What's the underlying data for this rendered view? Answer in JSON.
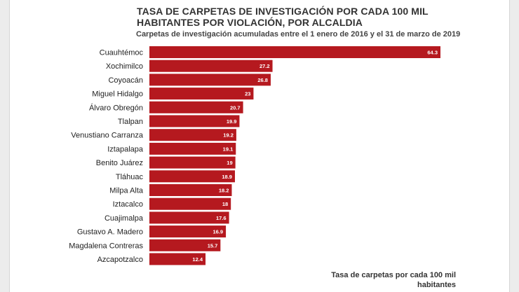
{
  "chart_data": {
    "type": "bar",
    "orientation": "horizontal",
    "title": "TASA DE CARPETAS DE INVESTIGACIÓN POR CADA 100 MIL HABITANTES POR VIOLACIÓN, POR ALCALDIA",
    "subtitle": "Carpetas de investigación acumuladas entre el 1 enero de 2016 y el 31 de marzo de 2019",
    "xlabel": "Tasa de carpetas por cada 100 mil habitantes",
    "ylabel": "",
    "categories": [
      "Cuauhtémoc",
      "Xochimilco",
      "Coyoacán",
      "Miguel Hidalgo",
      "Álvaro Obregón",
      "Tlalpan",
      "Venustiano Carranza",
      "Iztapalapa",
      "Benito Juárez",
      "Tláhuac",
      "Milpa Alta",
      "Iztacalco",
      "Cuajimalpa",
      "Gustavo A. Madero",
      "Magdalena Contreras",
      "Azcapotzalco"
    ],
    "values": [
      64.3,
      27.2,
      26.8,
      23,
      20.7,
      19.9,
      19.2,
      19.1,
      19,
      18.9,
      18.2,
      18,
      17.6,
      16.9,
      15.7,
      12.4
    ],
    "value_labels": [
      "64.3",
      "27.2",
      "26.8",
      "23",
      "20.7",
      "19.9",
      "19.2",
      "19.1",
      "19",
      "18.9",
      "18.2",
      "18",
      "17.6",
      "16.9",
      "15.7",
      "12.4"
    ],
    "xlim": [
      0,
      64.3
    ],
    "grid": false,
    "legend": "none",
    "bar_color": "#b5191f"
  }
}
